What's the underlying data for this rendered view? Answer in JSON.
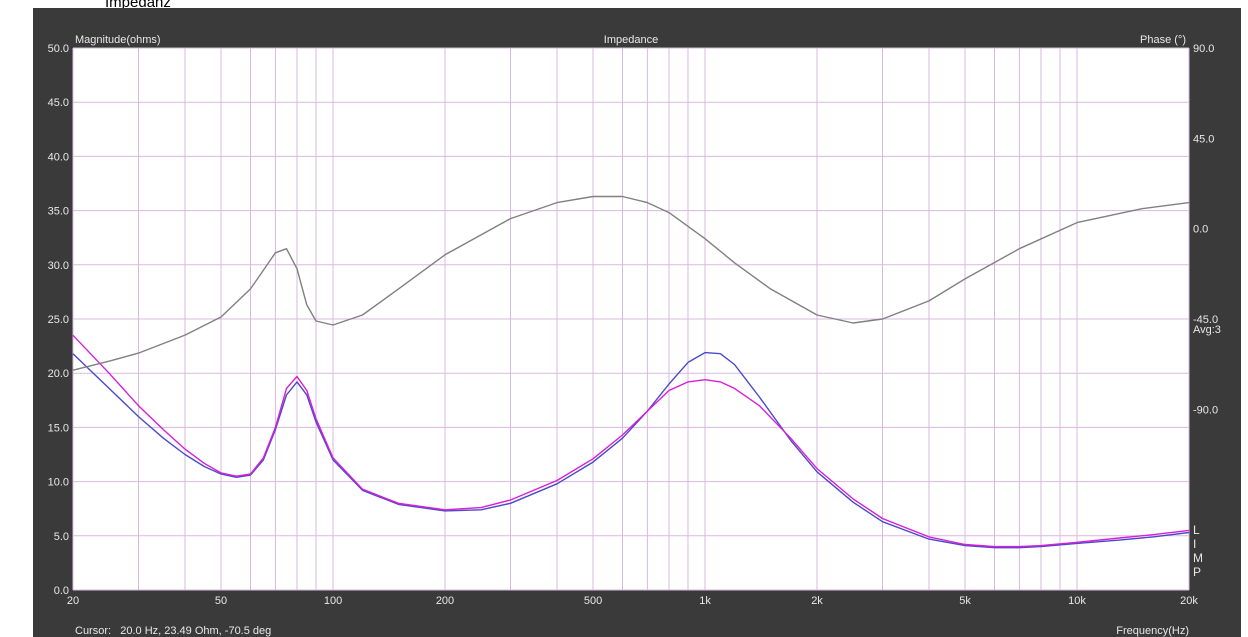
{
  "page_heading": "Impedanz",
  "chart_data": {
    "type": "line",
    "title": "Impedance",
    "ylabel": "Magnitude(ohms)",
    "y2label": "Phase (°)",
    "xlabel": "Frequency(Hz)",
    "xscale": "log",
    "xlim": [
      20,
      20000
    ],
    "ylim": [
      0,
      50
    ],
    "y2lim": [
      -180,
      90
    ],
    "grid": true,
    "yticks": [
      "0.0",
      "5.0",
      "10.0",
      "15.0",
      "20.0",
      "25.0",
      "30.0",
      "35.0",
      "40.0",
      "45.0",
      "50.0"
    ],
    "y2ticks": [
      "90.0",
      "45.0",
      "0.0",
      "-45.0",
      "-90.0"
    ],
    "xticks": [
      {
        "v": 20,
        "label": "20"
      },
      {
        "v": 50,
        "label": "50"
      },
      {
        "v": 100,
        "label": "100"
      },
      {
        "v": 200,
        "label": "200"
      },
      {
        "v": 500,
        "label": "500"
      },
      {
        "v": 1000,
        "label": "1k"
      },
      {
        "v": 2000,
        "label": "2k"
      },
      {
        "v": 5000,
        "label": "5k"
      },
      {
        "v": 10000,
        "label": "10k"
      },
      {
        "v": 20000,
        "label": "20k"
      }
    ],
    "avg_label": "Avg:3",
    "side_letters": "LIMP",
    "cursor_text": "Cursor:   20.0 Hz, 23.49 Ohm, -70.5 deg",
    "colors": {
      "background": "#ffffff",
      "frame": "#3a3a3a",
      "grid": "#d9b8e0",
      "axis_text": "#e8e8e8",
      "series_blue": "#4a4ac8",
      "series_magenta": "#d81ed8",
      "phase": "#808080"
    },
    "series": [
      {
        "axis": "magnitude",
        "color": "#4a4ac8",
        "points": [
          [
            20,
            21.8
          ],
          [
            25,
            18.6
          ],
          [
            30,
            16.0
          ],
          [
            35,
            14.0
          ],
          [
            40,
            12.5
          ],
          [
            45,
            11.4
          ],
          [
            50,
            10.7
          ],
          [
            55,
            10.4
          ],
          [
            60,
            10.6
          ],
          [
            65,
            12.0
          ],
          [
            70,
            14.8
          ],
          [
            75,
            18.0
          ],
          [
            80,
            19.2
          ],
          [
            85,
            18.0
          ],
          [
            90,
            15.5
          ],
          [
            100,
            12.0
          ],
          [
            120,
            9.2
          ],
          [
            150,
            7.9
          ],
          [
            200,
            7.3
          ],
          [
            250,
            7.4
          ],
          [
            300,
            8.0
          ],
          [
            400,
            9.8
          ],
          [
            500,
            11.8
          ],
          [
            600,
            14.0
          ],
          [
            700,
            16.5
          ],
          [
            800,
            19.0
          ],
          [
            900,
            21.0
          ],
          [
            1000,
            21.9
          ],
          [
            1100,
            21.8
          ],
          [
            1200,
            20.8
          ],
          [
            1400,
            17.8
          ],
          [
            1700,
            13.8
          ],
          [
            2000,
            10.9
          ],
          [
            2500,
            8.1
          ],
          [
            3000,
            6.3
          ],
          [
            4000,
            4.7
          ],
          [
            5000,
            4.1
          ],
          [
            6000,
            3.9
          ],
          [
            7000,
            3.9
          ],
          [
            8000,
            4.0
          ],
          [
            10000,
            4.3
          ],
          [
            13000,
            4.6
          ],
          [
            16000,
            4.9
          ],
          [
            20000,
            5.3
          ]
        ]
      },
      {
        "axis": "magnitude",
        "color": "#d81ed8",
        "points": [
          [
            20,
            23.5
          ],
          [
            25,
            20.0
          ],
          [
            30,
            17.0
          ],
          [
            35,
            14.8
          ],
          [
            40,
            13.0
          ],
          [
            45,
            11.7
          ],
          [
            50,
            10.8
          ],
          [
            55,
            10.5
          ],
          [
            60,
            10.7
          ],
          [
            65,
            12.2
          ],
          [
            70,
            15.0
          ],
          [
            75,
            18.6
          ],
          [
            80,
            19.7
          ],
          [
            85,
            18.4
          ],
          [
            90,
            15.8
          ],
          [
            100,
            12.2
          ],
          [
            120,
            9.3
          ],
          [
            150,
            8.0
          ],
          [
            200,
            7.4
          ],
          [
            250,
            7.6
          ],
          [
            300,
            8.3
          ],
          [
            400,
            10.1
          ],
          [
            500,
            12.1
          ],
          [
            600,
            14.3
          ],
          [
            700,
            16.5
          ],
          [
            800,
            18.4
          ],
          [
            900,
            19.2
          ],
          [
            1000,
            19.4
          ],
          [
            1100,
            19.2
          ],
          [
            1200,
            18.6
          ],
          [
            1400,
            17.0
          ],
          [
            1700,
            14.0
          ],
          [
            2000,
            11.2
          ],
          [
            2500,
            8.4
          ],
          [
            3000,
            6.6
          ],
          [
            4000,
            4.9
          ],
          [
            5000,
            4.2
          ],
          [
            6000,
            4.0
          ],
          [
            7000,
            4.0
          ],
          [
            8000,
            4.1
          ],
          [
            10000,
            4.4
          ],
          [
            13000,
            4.8
          ],
          [
            16000,
            5.1
          ],
          [
            20000,
            5.5
          ]
        ]
      },
      {
        "axis": "phase",
        "color": "#808080",
        "points": [
          [
            20,
            -70.5
          ],
          [
            25,
            -66
          ],
          [
            30,
            -62
          ],
          [
            40,
            -53
          ],
          [
            50,
            -44
          ],
          [
            60,
            -30
          ],
          [
            70,
            -12
          ],
          [
            75,
            -10
          ],
          [
            80,
            -20
          ],
          [
            85,
            -38
          ],
          [
            90,
            -46
          ],
          [
            100,
            -48
          ],
          [
            120,
            -43
          ],
          [
            150,
            -30
          ],
          [
            200,
            -13
          ],
          [
            300,
            5
          ],
          [
            400,
            13
          ],
          [
            500,
            16
          ],
          [
            600,
            16
          ],
          [
            700,
            13
          ],
          [
            800,
            8
          ],
          [
            1000,
            -5
          ],
          [
            1200,
            -17
          ],
          [
            1500,
            -30
          ],
          [
            2000,
            -43
          ],
          [
            2500,
            -47
          ],
          [
            3000,
            -45
          ],
          [
            4000,
            -36
          ],
          [
            5000,
            -25
          ],
          [
            7000,
            -10
          ],
          [
            10000,
            3
          ],
          [
            15000,
            10
          ],
          [
            20000,
            13
          ]
        ]
      }
    ]
  }
}
